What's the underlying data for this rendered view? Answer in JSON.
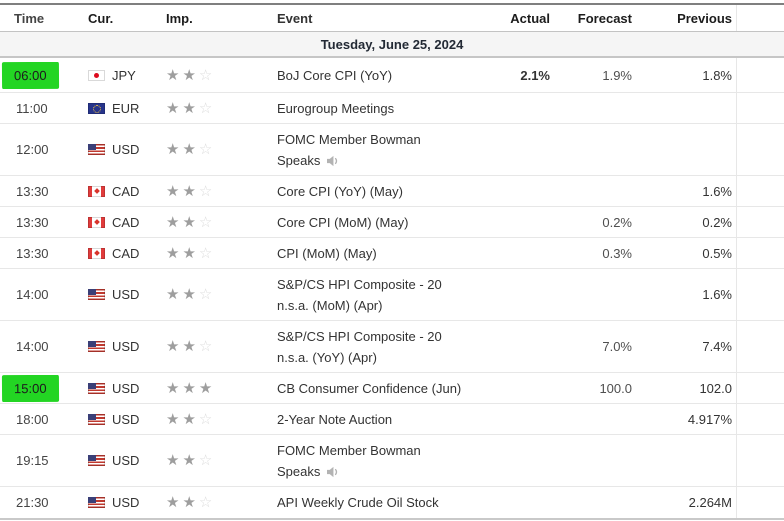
{
  "table": {
    "headers": [
      "Time",
      "Cur.",
      "Imp.",
      "Event",
      "Actual",
      "Forecast",
      "Previous"
    ],
    "date_header": "Tuesday, June 25, 2024",
    "colors": {
      "highlight_green": "#23d523",
      "actual_green": "#0ca80c",
      "star_filled": "#9e9e9e",
      "star_empty": "#dcdcdc",
      "date_band_bg": "#f5f5f5"
    },
    "rows": [
      {
        "time": "06:00",
        "highlighted": true,
        "currency": "JPY",
        "flag": "japan-flag",
        "importance": 2,
        "event_lines": [
          "BoJ Core CPI (YoY)"
        ],
        "speaker": false,
        "actual": "2.1%",
        "actual_green": true,
        "forecast": "1.9%",
        "previous": "1.8%"
      },
      {
        "time": "11:00",
        "highlighted": false,
        "currency": "EUR",
        "flag": "eu-flag",
        "importance": 2,
        "event_lines": [
          "Eurogroup Meetings"
        ],
        "speaker": false,
        "actual": "",
        "actual_green": false,
        "forecast": "",
        "previous": ""
      },
      {
        "time": "12:00",
        "highlighted": false,
        "currency": "USD",
        "flag": "us-flag",
        "importance": 2,
        "event_lines": [
          "FOMC Member Bowman",
          "Speaks"
        ],
        "speaker": true,
        "actual": "",
        "actual_green": false,
        "forecast": "",
        "previous": ""
      },
      {
        "time": "13:30",
        "highlighted": false,
        "currency": "CAD",
        "flag": "canada-flag",
        "importance": 2,
        "event_lines": [
          "Core CPI (YoY) (May)"
        ],
        "speaker": false,
        "actual": "",
        "actual_green": false,
        "forecast": "",
        "previous": "1.6%"
      },
      {
        "time": "13:30",
        "highlighted": false,
        "currency": "CAD",
        "flag": "canada-flag",
        "importance": 2,
        "event_lines": [
          "Core CPI (MoM) (May)"
        ],
        "speaker": false,
        "actual": "",
        "actual_green": false,
        "forecast": "0.2%",
        "previous": "0.2%"
      },
      {
        "time": "13:30",
        "highlighted": false,
        "currency": "CAD",
        "flag": "canada-flag",
        "importance": 2,
        "event_lines": [
          "CPI (MoM) (May)"
        ],
        "speaker": false,
        "actual": "",
        "actual_green": false,
        "forecast": "0.3%",
        "previous": "0.5%"
      },
      {
        "time": "14:00",
        "highlighted": false,
        "currency": "USD",
        "flag": "us-flag",
        "importance": 2,
        "event_lines": [
          "S&P/CS HPI Composite - 20",
          "n.s.a. (MoM) (Apr)"
        ],
        "speaker": false,
        "actual": "",
        "actual_green": false,
        "forecast": "",
        "previous": "1.6%"
      },
      {
        "time": "14:00",
        "highlighted": false,
        "currency": "USD",
        "flag": "us-flag",
        "importance": 2,
        "event_lines": [
          "S&P/CS HPI Composite - 20",
          "n.s.a. (YoY) (Apr)"
        ],
        "speaker": false,
        "actual": "",
        "actual_green": false,
        "forecast": "7.0%",
        "previous": "7.4%"
      },
      {
        "time": "15:00",
        "highlighted": true,
        "currency": "USD",
        "flag": "us-flag",
        "importance": 3,
        "event_lines": [
          "CB Consumer Confidence (Jun)"
        ],
        "speaker": false,
        "actual": "",
        "actual_green": false,
        "forecast": "100.0",
        "previous": "102.0"
      },
      {
        "time": "18:00",
        "highlighted": false,
        "currency": "USD",
        "flag": "us-flag",
        "importance": 2,
        "event_lines": [
          "2-Year Note Auction"
        ],
        "speaker": false,
        "actual": "",
        "actual_green": false,
        "forecast": "",
        "previous": "4.917%"
      },
      {
        "time": "19:15",
        "highlighted": false,
        "currency": "USD",
        "flag": "us-flag",
        "importance": 2,
        "event_lines": [
          "FOMC Member Bowman",
          "Speaks"
        ],
        "speaker": true,
        "actual": "",
        "actual_green": false,
        "forecast": "",
        "previous": ""
      },
      {
        "time": "21:30",
        "highlighted": false,
        "currency": "USD",
        "flag": "us-flag",
        "importance": 2,
        "event_lines": [
          "API Weekly Crude Oil Stock"
        ],
        "speaker": false,
        "actual": "",
        "actual_green": false,
        "forecast": "",
        "previous": "2.264M"
      }
    ]
  }
}
